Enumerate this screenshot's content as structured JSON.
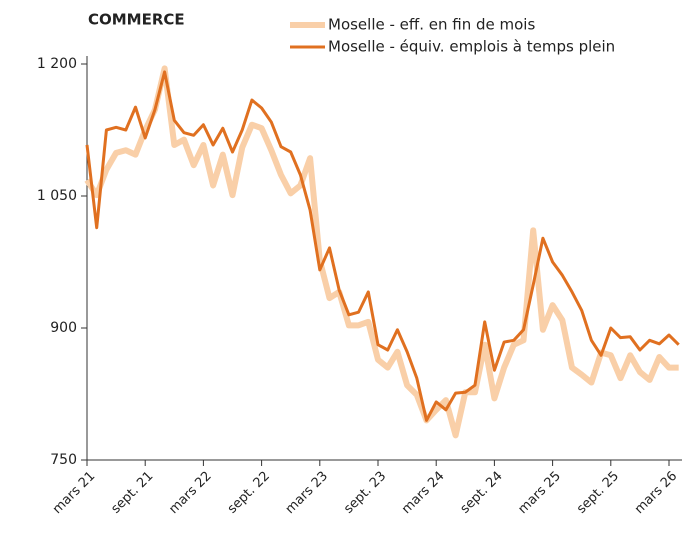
{
  "chart_data": {
    "type": "line",
    "title": "COMMERCE",
    "categories": [
      "mars 21",
      null,
      null,
      null,
      null,
      null,
      "sept. 21",
      null,
      null,
      null,
      null,
      null,
      "mars 22",
      null,
      null,
      null,
      null,
      null,
      "sept. 22",
      null,
      null,
      null,
      null,
      null,
      "mars 23",
      null,
      null,
      null,
      null,
      null,
      "sept. 23",
      null,
      null,
      null,
      null,
      null,
      "mars 24",
      null,
      null,
      null,
      null,
      null,
      "sept. 24",
      null,
      null,
      null,
      null,
      null,
      "mars 25",
      null,
      null,
      null,
      null,
      null,
      "sept. 25",
      null,
      null,
      null,
      null,
      null,
      "mars 26",
      null
    ],
    "series": [
      {
        "name": "Moselle - eff. en fin de mois",
        "color": "#f9cfa8",
        "values": [
          1068,
          1051,
          1080,
          1099,
          1102,
          1097,
          1125,
          1148,
          1195,
          1108,
          1114,
          1085,
          1108,
          1062,
          1097,
          1051,
          1105,
          1131,
          1127,
          1102,
          1074,
          1053,
          1062,
          1093,
          977,
          934,
          941,
          903,
          903,
          907,
          864,
          855,
          873,
          835,
          824,
          795,
          807,
          818,
          778,
          827,
          827,
          881,
          820,
          855,
          881,
          886,
          1011,
          898,
          926,
          909,
          855,
          847,
          838,
          872,
          869,
          843,
          869,
          850,
          841,
          867,
          855,
          855
        ]
      },
      {
        "name": "Moselle - équiv. emplois à temps plein",
        "color": "#e07020",
        "values": [
          1108,
          1014,
          1125,
          1128,
          1125,
          1151,
          1116,
          1148,
          1191,
          1136,
          1122,
          1119,
          1131,
          1108,
          1127,
          1100,
          1125,
          1159,
          1150,
          1134,
          1106,
          1100,
          1074,
          1034,
          966,
          991,
          943,
          915,
          918,
          941,
          881,
          875,
          898,
          873,
          843,
          795,
          816,
          807,
          826,
          827,
          835,
          907,
          852,
          884,
          886,
          898,
          949,
          1002,
          975,
          960,
          941,
          920,
          886,
          869,
          900,
          889,
          890,
          875,
          886,
          882,
          892,
          881
        ]
      }
    ],
    "ylim": [
      750,
      1200
    ],
    "yticks": [
      750,
      900,
      {
        "value": 1050,
        "label": "1 050"
      },
      {
        "value": 1200,
        "label": "1 200"
      }
    ],
    "grid": false
  }
}
